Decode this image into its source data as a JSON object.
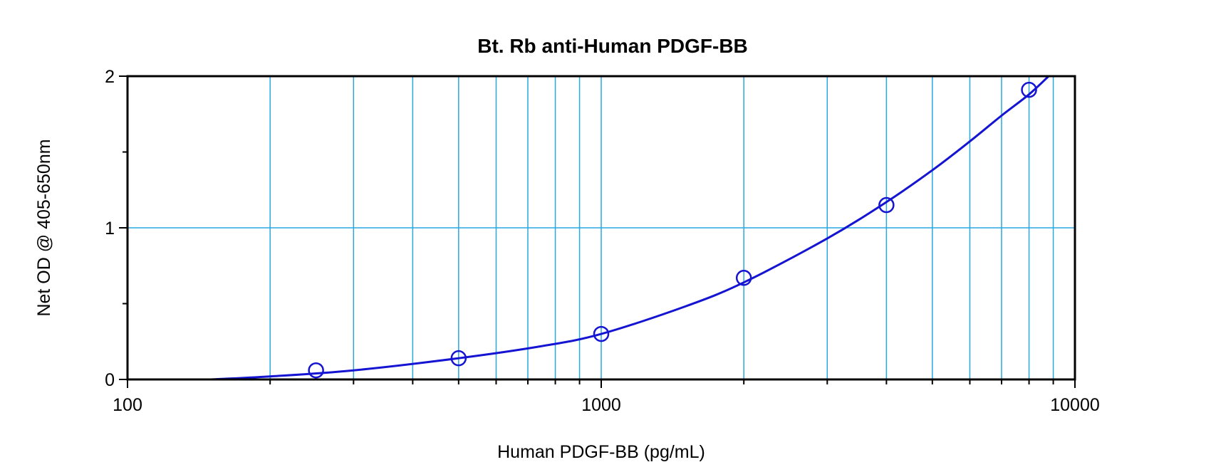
{
  "chart_data": {
    "type": "scatter",
    "title": "Bt. Rb anti-Human PDGF-BB",
    "xlabel": "Human PDGF-BB (pg/mL)",
    "ylabel": "Net OD @ 405-650nm",
    "xscale": "log",
    "xlim": [
      100,
      10000
    ],
    "ylim": [
      0,
      2
    ],
    "x_ticks": [
      100,
      1000,
      10000
    ],
    "x_tick_labels": [
      "100",
      "1000",
      "10000"
    ],
    "y_ticks": [
      0,
      1,
      2
    ],
    "y_tick_labels": [
      "0",
      "1",
      "2"
    ],
    "grid": true,
    "series": [
      {
        "type": "scatter",
        "marker": "open-circle",
        "x": [
          250,
          500,
          1000,
          2000,
          4000,
          8000
        ],
        "y": [
          0.06,
          0.14,
          0.3,
          0.67,
          1.15,
          1.91
        ]
      },
      {
        "type": "line",
        "fit": "curve",
        "x": [
          150,
          200,
          300,
          500,
          750,
          1000,
          1500,
          2000,
          3000,
          4000,
          5000,
          6000,
          7000,
          8000,
          8800
        ],
        "y": [
          0.0,
          0.02,
          0.06,
          0.14,
          0.22,
          0.3,
          0.48,
          0.64,
          0.93,
          1.17,
          1.38,
          1.57,
          1.74,
          1.88,
          2.0
        ]
      }
    ],
    "colors": {
      "grid": "#29a8e0",
      "axes": "#000000",
      "data": "#1414d2"
    }
  }
}
